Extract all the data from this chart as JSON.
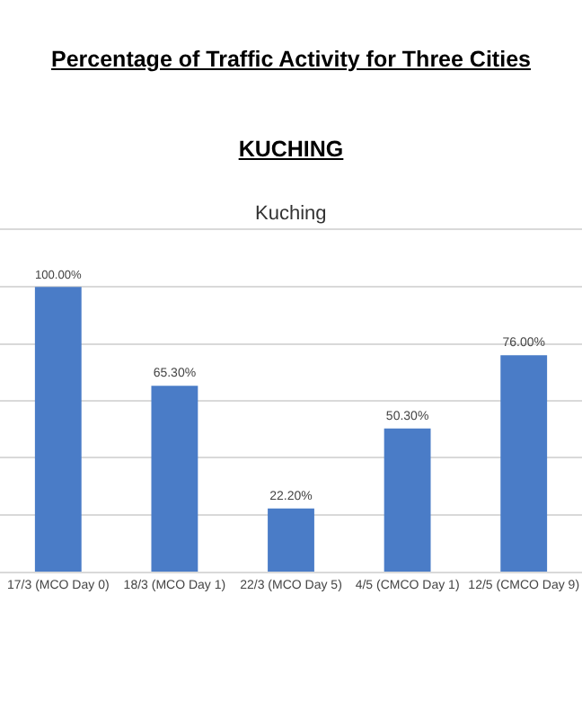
{
  "chart_data": {
    "type": "bar",
    "title": "Percentage of Traffic Activity for Three Cities",
    "subtitle": "KUCHING",
    "annotations": [
      "Kuching"
    ],
    "categories": [
      "17/3 (MCO Day 0)",
      "18/3 (MCO Day 1)",
      "22/3 (MCO Day 5)",
      "4/5 (CMCO Day 1)",
      "12/5 (CMCO Day 9)"
    ],
    "values": [
      100,
      65.3,
      22.2,
      50.3,
      76
    ],
    "value_labels": [
      "100.00%",
      "65.30%",
      "22.20%",
      "50.30%",
      "76.00%"
    ],
    "color": "#4a7cc7",
    "ylim": [
      0,
      120
    ],
    "yticks": [
      {
        "value": 0,
        "label": null
      },
      {
        "value": 20,
        "label": null
      },
      {
        "value": 40,
        "label": null
      },
      {
        "value": 60,
        "label": null
      },
      {
        "value": 80,
        "label": null
      },
      {
        "value": 100,
        "label": null
      },
      {
        "value": 120,
        "label": null
      }
    ],
    "grid": "y",
    "legend": false,
    "tick_labels": "x"
  }
}
